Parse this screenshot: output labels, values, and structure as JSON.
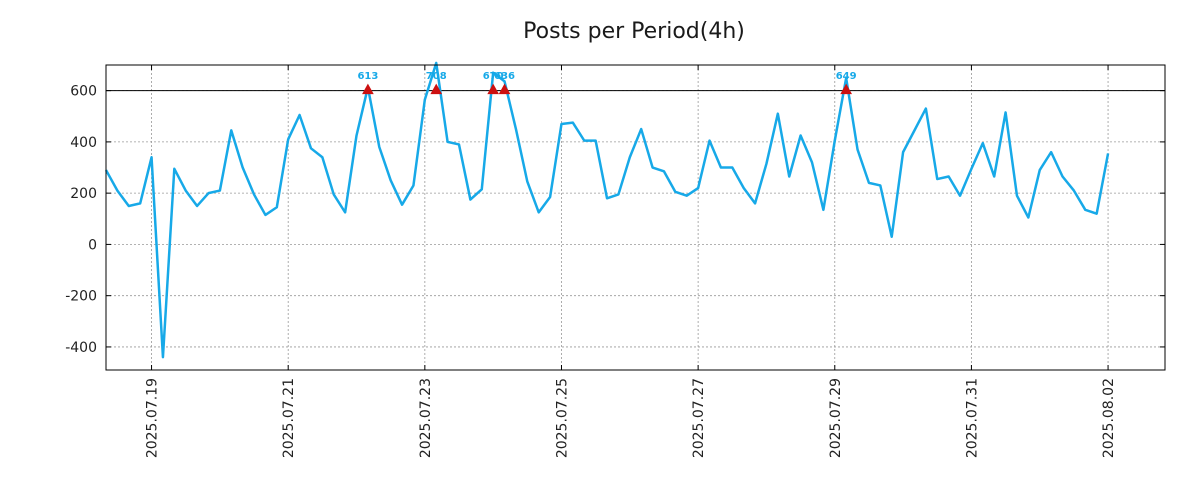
{
  "chart_data": {
    "type": "line",
    "title": "Posts per Period(4h)",
    "xlabel": "",
    "ylabel": "",
    "x_start": "2025-07-18 08:00",
    "x_step_hours": 4,
    "xlim": [
      "2025-07-18 08:00",
      "2025-08-02 20:00"
    ],
    "ylim": [
      -490,
      700
    ],
    "threshold": 600,
    "x_ticks": [
      "2025.07.19",
      "2025.07.21",
      "2025.07.23",
      "2025.07.25",
      "2025.07.27",
      "2025.07.29",
      "2025.07.31",
      "2025.08.02"
    ],
    "y_ticks": [
      -400,
      -200,
      0,
      200,
      400,
      600
    ],
    "grid": true,
    "series": [
      {
        "name": "",
        "color": "#17a9e8",
        "values": [
          290,
          210,
          150,
          160,
          340,
          -440,
          295,
          210,
          150,
          200,
          210,
          445,
          300,
          195,
          115,
          145,
          410,
          505,
          375,
          340,
          195,
          125,
          425,
          613,
          380,
          250,
          155,
          230,
          565,
          708,
          400,
          390,
          175,
          215,
          670,
          636,
          450,
          245,
          125,
          185,
          470,
          475,
          405,
          405,
          180,
          195,
          340,
          450,
          300,
          285,
          205,
          190,
          220,
          405,
          300,
          300,
          220,
          160,
          315,
          510,
          265,
          425,
          320,
          135,
          405,
          649,
          370,
          240,
          230,
          30,
          360,
          445,
          530,
          255,
          265,
          190,
          295,
          395,
          265,
          515,
          190,
          105,
          290,
          360,
          265,
          210,
          135,
          120,
          355
        ]
      }
    ],
    "annotations": [
      {
        "x_index": 23,
        "label": "613",
        "color": "#cc1111"
      },
      {
        "x_index": 29,
        "label": "708",
        "color": "#cc1111"
      },
      {
        "x_index": 34,
        "label": "670",
        "color": "#cc1111"
      },
      {
        "x_index": 35,
        "label": "636",
        "color": "#cc1111"
      },
      {
        "x_index": 65,
        "label": "649",
        "color": "#cc1111"
      }
    ]
  }
}
